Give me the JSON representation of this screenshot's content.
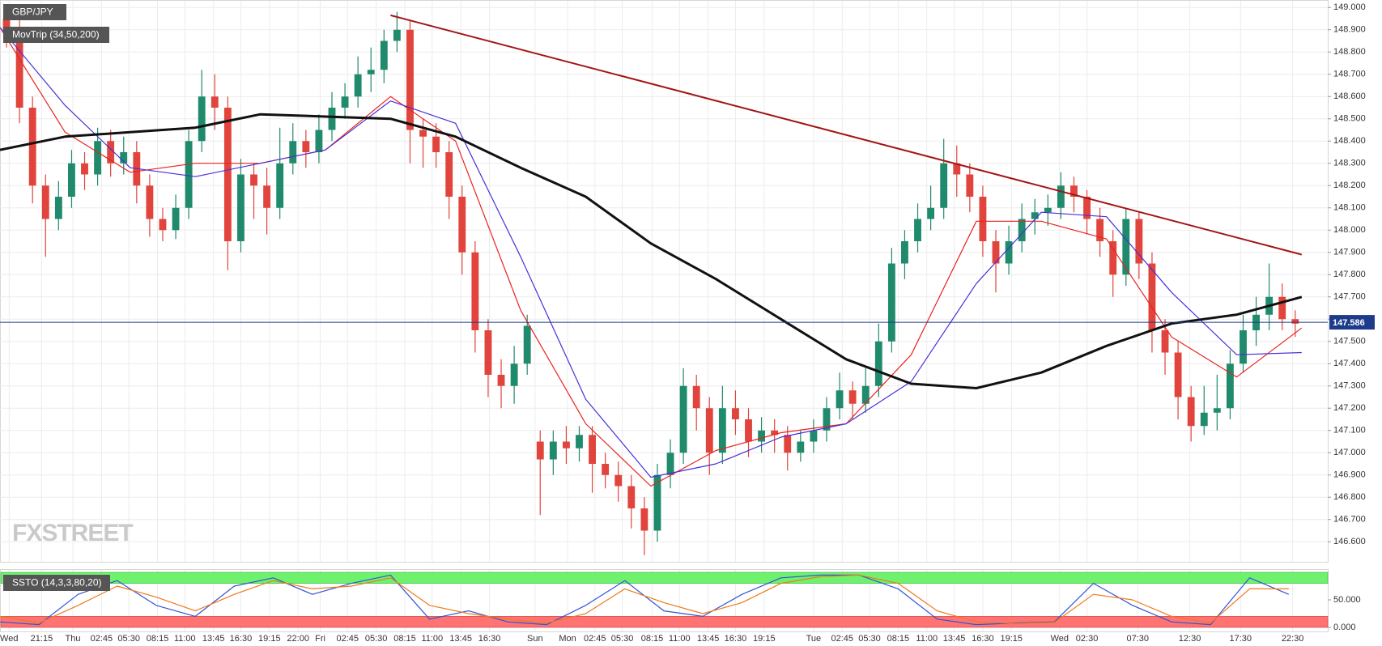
{
  "chart_data": [
    {
      "type": "candlestick",
      "title": "GBP/JPY",
      "subtitle": "MovTrip (34,50,200)",
      "watermark": "FXSTREET",
      "open": [
        148.95,
        148.9,
        148.55,
        148.2,
        148.05,
        148.15,
        148.3,
        148.25,
        148.4,
        148.3,
        148.35,
        148.2,
        148.05,
        148.0,
        148.1,
        148.4,
        148.6,
        148.55,
        147.95,
        148.25,
        148.2,
        148.1,
        148.3,
        148.4,
        148.35,
        148.45,
        148.55,
        148.6,
        148.7,
        148.72,
        148.85,
        148.9,
        148.45,
        148.42,
        148.35,
        148.15,
        147.9,
        147.55,
        147.35,
        147.3,
        147.4,
        147.05,
        146.97,
        147.05,
        147.02,
        147.08,
        146.95,
        146.9,
        146.85,
        146.75,
        146.65,
        146.9,
        147.0,
        147.3,
        147.2,
        147.0,
        147.2,
        147.15,
        147.05,
        147.1,
        147.08,
        147.0,
        147.05,
        147.1,
        147.2,
        147.28,
        147.22,
        147.3,
        147.5,
        147.85,
        147.95,
        148.05,
        148.1,
        148.3,
        148.25,
        148.15,
        147.95,
        147.85,
        147.95,
        148.05,
        148.08,
        148.1,
        148.2,
        148.15,
        148.05,
        147.95,
        147.8,
        148.05,
        147.85,
        147.55,
        147.45,
        147.25,
        147.12,
        147.18,
        147.2,
        147.4,
        147.55,
        147.62,
        147.7,
        147.6
      ],
      "high": [
        149.0,
        148.95,
        148.6,
        148.25,
        148.22,
        148.36,
        148.35,
        148.46,
        148.45,
        148.42,
        148.4,
        148.25,
        148.1,
        148.16,
        148.45,
        148.72,
        148.7,
        148.6,
        148.32,
        148.3,
        148.28,
        148.46,
        148.48,
        148.45,
        148.52,
        148.62,
        148.66,
        148.78,
        148.82,
        148.9,
        148.98,
        148.94,
        148.5,
        148.48,
        148.4,
        148.2,
        147.95,
        147.6,
        147.42,
        147.48,
        147.62,
        147.1,
        147.1,
        147.12,
        147.12,
        147.12,
        147.0,
        146.96,
        146.9,
        146.8,
        146.95,
        147.06,
        147.38,
        147.35,
        147.25,
        147.3,
        147.28,
        147.2,
        147.16,
        147.15,
        147.12,
        147.1,
        147.15,
        147.25,
        147.36,
        147.32,
        147.38,
        147.58,
        147.92,
        148.0,
        148.12,
        148.2,
        148.41,
        148.38,
        148.3,
        148.2,
        148.0,
        148.02,
        148.12,
        148.14,
        148.16,
        148.26,
        148.24,
        148.18,
        148.1,
        148.0,
        148.1,
        148.08,
        147.9,
        147.6,
        147.5,
        147.3,
        147.3,
        147.35,
        147.46,
        147.62,
        147.7,
        147.85,
        147.76,
        147.64
      ],
      "low": [
        148.82,
        148.48,
        148.12,
        147.88,
        148.0,
        148.1,
        148.18,
        148.2,
        148.24,
        148.25,
        148.12,
        147.97,
        147.95,
        147.96,
        148.05,
        148.35,
        148.45,
        147.82,
        147.9,
        148.05,
        147.98,
        148.05,
        148.25,
        148.28,
        148.3,
        148.4,
        148.5,
        148.55,
        148.62,
        148.66,
        148.8,
        148.3,
        148.28,
        148.28,
        148.05,
        147.8,
        147.45,
        147.25,
        147.2,
        147.22,
        147.35,
        146.72,
        146.9,
        146.95,
        146.96,
        146.82,
        146.84,
        146.78,
        146.66,
        146.54,
        146.6,
        146.84,
        146.95,
        147.1,
        146.9,
        146.95,
        147.08,
        146.98,
        147.0,
        147.0,
        146.92,
        146.96,
        147.0,
        147.05,
        147.15,
        147.15,
        147.18,
        147.25,
        147.45,
        147.78,
        147.9,
        148.0,
        148.05,
        148.15,
        148.08,
        147.88,
        147.72,
        147.8,
        147.9,
        147.98,
        148.02,
        148.05,
        148.08,
        147.98,
        147.88,
        147.7,
        147.75,
        147.78,
        147.45,
        147.35,
        147.15,
        147.05,
        147.08,
        147.1,
        147.15,
        147.36,
        147.48,
        147.55,
        147.55,
        147.52
      ],
      "close": [
        148.9,
        148.55,
        148.2,
        148.05,
        148.15,
        148.3,
        148.25,
        148.4,
        148.3,
        148.35,
        148.2,
        148.05,
        148.0,
        148.1,
        148.4,
        148.6,
        148.55,
        147.95,
        148.25,
        148.2,
        148.1,
        148.3,
        148.4,
        148.35,
        148.45,
        148.55,
        148.6,
        148.7,
        148.72,
        148.85,
        148.9,
        148.45,
        148.42,
        148.35,
        148.15,
        147.9,
        147.55,
        147.35,
        147.3,
        147.4,
        147.57,
        146.97,
        147.05,
        147.02,
        147.08,
        146.95,
        146.9,
        146.85,
        146.75,
        146.65,
        146.9,
        147.0,
        147.3,
        147.2,
        147.0,
        147.2,
        147.15,
        147.05,
        147.1,
        147.08,
        147.0,
        147.05,
        147.1,
        147.2,
        147.28,
        147.22,
        147.3,
        147.5,
        147.85,
        147.95,
        148.05,
        148.1,
        148.3,
        148.25,
        148.15,
        147.95,
        147.85,
        147.95,
        148.05,
        148.08,
        148.1,
        148.2,
        148.15,
        148.05,
        147.95,
        147.8,
        148.05,
        147.85,
        147.55,
        147.45,
        147.25,
        147.12,
        147.18,
        147.2,
        147.4,
        147.55,
        147.62,
        147.7,
        147.6,
        147.58
      ],
      "up_color": "#1f8a6c",
      "down_color": "#e0443c",
      "overlay_x": [
        0,
        5,
        10,
        15,
        20,
        25,
        30,
        35,
        40,
        45,
        50,
        55,
        60,
        65,
        70,
        75,
        80,
        85,
        90,
        95,
        100
      ],
      "overlays": [
        {
          "color": "#e8231f",
          "values": [
            148.91,
            148.44,
            148.26,
            148.3,
            148.3,
            148.36,
            148.6,
            148.4,
            147.64,
            147.13,
            146.85,
            147.01,
            147.09,
            147.13,
            147.44,
            148.04,
            148.04,
            147.96,
            147.52,
            147.34,
            147.56
          ]
        },
        {
          "color": "#4b2fd6",
          "values": [
            148.91,
            148.56,
            148.28,
            148.24,
            148.3,
            148.36,
            148.58,
            148.48,
            147.88,
            147.24,
            146.89,
            146.95,
            147.07,
            147.13,
            147.32,
            147.76,
            148.08,
            148.06,
            147.72,
            147.44,
            147.45
          ]
        },
        {
          "color": "#111111",
          "values": [
            148.36,
            148.42,
            148.44,
            148.46,
            148.52,
            148.51,
            148.5,
            148.42,
            148.28,
            148.15,
            147.94,
            147.78,
            147.6,
            147.42,
            147.31,
            147.29,
            147.36,
            147.48,
            147.58,
            147.62,
            147.7
          ]
        }
      ],
      "trendline": {
        "color": "#a31515",
        "x": [
          30,
          100
        ],
        "values": [
          148.965,
          147.89
        ]
      },
      "last": 147.586,
      "xlim": [
        0,
        102
      ],
      "ylim": [
        146.51,
        149.03
      ],
      "yticks": [
        {
          "value": 146.6,
          "label": "146.600"
        },
        {
          "value": 146.7,
          "label": "146.700"
        },
        {
          "value": 146.8,
          "label": "146.800"
        },
        {
          "value": 146.9,
          "label": "146.900"
        },
        {
          "value": 147.0,
          "label": "147.000"
        },
        {
          "value": 147.1,
          "label": "147.100"
        },
        {
          "value": 147.2,
          "label": "147.200"
        },
        {
          "value": 147.3,
          "label": "147.300"
        },
        {
          "value": 147.4,
          "label": "147.400"
        },
        {
          "value": 147.5,
          "label": "147.500"
        },
        {
          "value": 147.6,
          "label": "147.600"
        },
        {
          "value": 147.7,
          "label": "147.700"
        },
        {
          "value": 147.8,
          "label": "147.800"
        },
        {
          "value": 147.9,
          "label": "147.900"
        },
        {
          "value": 148.0,
          "label": "148.000"
        },
        {
          "value": 148.1,
          "label": "148.100"
        },
        {
          "value": 148.2,
          "label": "148.200"
        },
        {
          "value": 148.3,
          "label": "148.300"
        },
        {
          "value": 148.4,
          "label": "148.400"
        },
        {
          "value": 148.5,
          "label": "148.500"
        },
        {
          "value": 148.6,
          "label": "148.600"
        },
        {
          "value": 148.7,
          "label": "148.700"
        },
        {
          "value": 148.8,
          "label": "148.800"
        },
        {
          "value": 148.9,
          "label": "148.900"
        },
        {
          "value": 149.0,
          "label": "149.000"
        }
      ],
      "xticks": [
        {
          "value": 0.7,
          "label": "Wed"
        },
        {
          "value": 3.2,
          "label": "21:15"
        },
        {
          "value": 5.6,
          "label": "Thu"
        },
        {
          "value": 7.8,
          "label": "02:45"
        },
        {
          "value": 9.9,
          "label": "05:30"
        },
        {
          "value": 12.1,
          "label": "08:15"
        },
        {
          "value": 14.2,
          "label": "11:00"
        },
        {
          "value": 16.4,
          "label": "13:45"
        },
        {
          "value": 18.5,
          "label": "16:30"
        },
        {
          "value": 20.7,
          "label": "19:15"
        },
        {
          "value": 22.9,
          "label": "22:00"
        },
        {
          "value": 24.6,
          "label": "Fri"
        },
        {
          "value": 26.7,
          "label": "02:45"
        },
        {
          "value": 28.9,
          "label": "05:30"
        },
        {
          "value": 31.1,
          "label": "08:15"
        },
        {
          "value": 33.2,
          "label": "11:00"
        },
        {
          "value": 35.4,
          "label": "13:45"
        },
        {
          "value": 37.6,
          "label": "16:30"
        },
        {
          "value": 41.1,
          "label": "Sun"
        },
        {
          "value": 43.6,
          "label": "Mon"
        },
        {
          "value": 45.7,
          "label": "02:45"
        },
        {
          "value": 47.8,
          "label": "05:30"
        },
        {
          "value": 50.1,
          "label": "08:15"
        },
        {
          "value": 52.2,
          "label": "11:00"
        },
        {
          "value": 54.4,
          "label": "13:45"
        },
        {
          "value": 56.5,
          "label": "16:30"
        },
        {
          "value": 58.7,
          "label": "19:15"
        },
        {
          "value": 62.5,
          "label": "Tue"
        },
        {
          "value": 64.7,
          "label": "02:45"
        },
        {
          "value": 66.8,
          "label": "05:30"
        },
        {
          "value": 69.0,
          "label": "08:15"
        },
        {
          "value": 71.2,
          "label": "11:00"
        },
        {
          "value": 73.3,
          "label": "13:45"
        },
        {
          "value": 75.5,
          "label": "16:30"
        },
        {
          "value": 77.7,
          "label": "19:15"
        },
        {
          "value": 81.4,
          "label": "Wed"
        },
        {
          "value": 83.5,
          "label": "02:30"
        },
        {
          "value": 87.4,
          "label": "07:30"
        },
        {
          "value": 91.4,
          "label": "12:30"
        },
        {
          "value": 95.3,
          "label": "17:30"
        },
        {
          "value": 99.3,
          "label": "22:30"
        }
      ],
      "grid": true
    },
    {
      "type": "line",
      "title": "SSTO (14,3,3,80,20)",
      "x": [
        0,
        3,
        6,
        9,
        12,
        15,
        18,
        21,
        24,
        27,
        30,
        33,
        36,
        39,
        42,
        45,
        48,
        51,
        54,
        57,
        60,
        63,
        66,
        69,
        72,
        75,
        78,
        81,
        84,
        87,
        90,
        93,
        96,
        99
      ],
      "series": [
        {
          "color": "#2f55d4",
          "values": [
            10,
            5,
            60,
            85,
            40,
            20,
            75,
            90,
            60,
            80,
            95,
            15,
            30,
            10,
            5,
            40,
            85,
            30,
            20,
            60,
            90,
            95,
            95,
            70,
            15,
            5,
            8,
            10,
            80,
            40,
            10,
            5,
            90,
            60
          ]
        },
        {
          "color": "#f07a1a",
          "values": [
            20,
            8,
            40,
            75,
            55,
            30,
            60,
            85,
            70,
            75,
            90,
            40,
            25,
            15,
            8,
            25,
            70,
            45,
            25,
            45,
            80,
            92,
            95,
            80,
            30,
            10,
            7,
            9,
            60,
            50,
            20,
            8,
            70,
            70
          ]
        }
      ],
      "bands": [
        80,
        20
      ],
      "band_colors": [
        "#6ef26e",
        "#ff7373"
      ],
      "xlim": [
        0,
        102
      ],
      "ylim": [
        0,
        100
      ],
      "yticks": [
        {
          "value": 0,
          "label": "0.000"
        },
        {
          "value": 50,
          "label": "50.000"
        }
      ]
    }
  ]
}
